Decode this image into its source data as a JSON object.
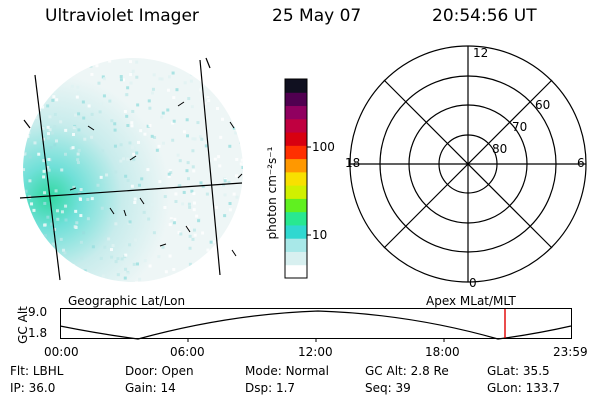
{
  "header": {
    "instrument": "Ultraviolet Imager",
    "date": "25 May 07",
    "time": "20:54:56 UT"
  },
  "colorbar": {
    "label": "photon cm⁻²s⁻¹",
    "ticks": [
      "100",
      "10"
    ],
    "colors": [
      "#ffffff",
      "#d8f0f0",
      "#a8e8e8",
      "#30d8d0",
      "#28e890",
      "#60f020",
      "#d0f000",
      "#f8e000",
      "#ff9800",
      "#ff3000",
      "#d80010",
      "#c00040",
      "#900060",
      "#500050",
      "#101020"
    ]
  },
  "polar_plot": {
    "clock_labels": [
      "12",
      "18",
      "6",
      "0"
    ],
    "lat_labels": [
      "60",
      "70",
      "80"
    ]
  },
  "altitude_strip": {
    "left_label": "Geographic Lat/Lon",
    "right_label": "Apex MLat/MLT",
    "axis_label": "GC Alt",
    "y_ticks": [
      "9.0",
      "1.8"
    ],
    "time_ticks": [
      "00:00",
      "06:00",
      "12:00",
      "18:00",
      "23:59"
    ]
  },
  "info": {
    "row1": [
      {
        "key": "Flt:",
        "value": "LBHL"
      },
      {
        "key": "Door:",
        "value": "Open"
      },
      {
        "key": "Mode:",
        "value": "Normal"
      },
      {
        "key": "GC Alt:",
        "value": "2.8 Re"
      },
      {
        "key": "GLat:",
        "value": "35.5"
      }
    ],
    "row2": [
      {
        "key": "IP:",
        "value": "36.0"
      },
      {
        "key": "Gain:",
        "value": "14"
      },
      {
        "key": "Dsp:",
        "value": "1.7"
      },
      {
        "key": "Seq:",
        "value": "39"
      },
      {
        "key": "GLon:",
        "value": "133.7"
      }
    ]
  }
}
